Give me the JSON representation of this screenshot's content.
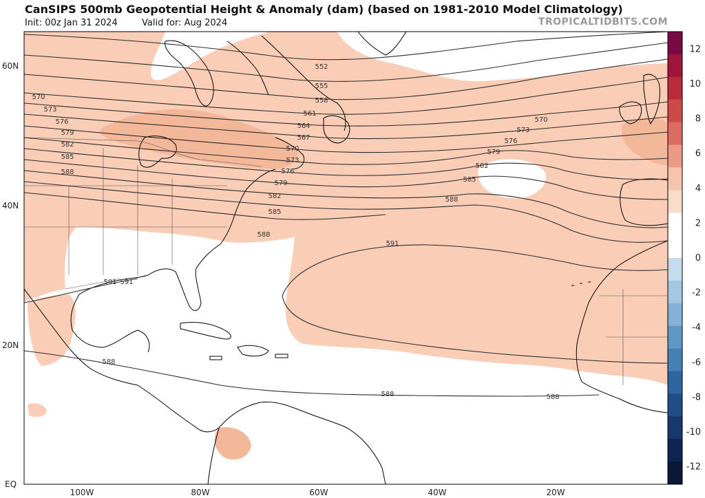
{
  "header": {
    "title": "CanSIPS 500mb Geopotential Height & Anomaly (dam) (based on 1981-2010 Model Climatology)",
    "init": "Init: 00z Jan 31 2024",
    "valid": "Valid for: Aug 2024",
    "brand": "TROPICALTIDBITS.COM"
  },
  "axes": {
    "lat_labels": [
      "60N",
      "40N",
      "20N",
      "EQ"
    ],
    "lon_labels": [
      "100W",
      "80W",
      "60W",
      "40W",
      "20W"
    ]
  },
  "colorbar": {
    "ticks": [
      "12",
      "10",
      "8",
      "6",
      "4",
      "2",
      "0",
      "-2",
      "-4",
      "-6",
      "-8",
      "-10",
      "-12"
    ],
    "colors": [
      "#7a0a44",
      "#a0153b",
      "#b92a3a",
      "#cc4a48",
      "#dc6c61",
      "#eb9a86",
      "#f5c3ae",
      "#fadbcc",
      "#ffffff",
      "#ffffff",
      "#c4dcec",
      "#a4c8e1",
      "#83b2d6",
      "#5f98c7",
      "#447fb6",
      "#2f65a0",
      "#214d88",
      "#17386d",
      "#0f2450",
      "#0a1838"
    ]
  },
  "contours": [
    {
      "label": "552"
    },
    {
      "label": "555"
    },
    {
      "label": "558"
    },
    {
      "label": "561"
    },
    {
      "label": "564"
    },
    {
      "label": "567"
    },
    {
      "label": "570"
    },
    {
      "label": "573"
    },
    {
      "label": "576"
    },
    {
      "label": "579"
    },
    {
      "label": "582"
    },
    {
      "label": "585"
    },
    {
      "label": "588"
    },
    {
      "label": "591"
    },
    {
      "label": "588"
    },
    {
      "label": "588"
    },
    {
      "label": "588"
    },
    {
      "label": "570"
    },
    {
      "label": "573"
    },
    {
      "label": "576"
    },
    {
      "label": "579"
    },
    {
      "label": "582"
    },
    {
      "label": "585"
    },
    {
      "label": "588"
    },
    {
      "label": "591"
    },
    {
      "label": "570"
    },
    {
      "label": "573"
    },
    {
      "label": "576"
    },
    {
      "label": "579"
    },
    {
      "label": "582"
    },
    {
      "label": "585"
    },
    {
      "label": "588"
    },
    {
      "label": "591"
    }
  ],
  "colors": {
    "anomaly_light": "#f9cdb6",
    "anomaly_medium": "#f3b79a",
    "coastline": "#000000",
    "contour": "#2a2a2a"
  }
}
